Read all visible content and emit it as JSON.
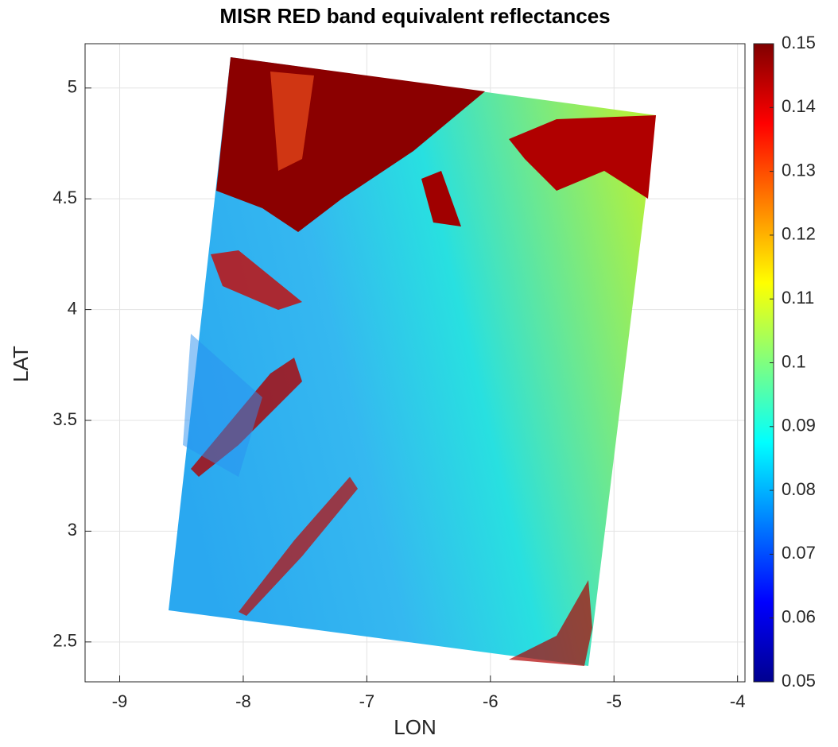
{
  "chart_data": {
    "type": "image",
    "title": "MISR RED band equivalent reflectances",
    "xlabel": "LON",
    "ylabel": "LAT",
    "xlim": [
      -9.28,
      -3.94
    ],
    "xticks": [
      -9,
      -8,
      -7,
      -6,
      -5,
      -4
    ],
    "ylim": [
      2.32,
      5.2
    ],
    "yticks": [
      2.5,
      3,
      3.5,
      4,
      4.5,
      5
    ],
    "grid": true,
    "colormap": "jet",
    "clim": [
      0.05,
      0.15
    ],
    "cticks": [
      0.05,
      0.06,
      0.07,
      0.08,
      0.09,
      0.1,
      0.11,
      0.12,
      0.13,
      0.14,
      0.15
    ]
  }
}
